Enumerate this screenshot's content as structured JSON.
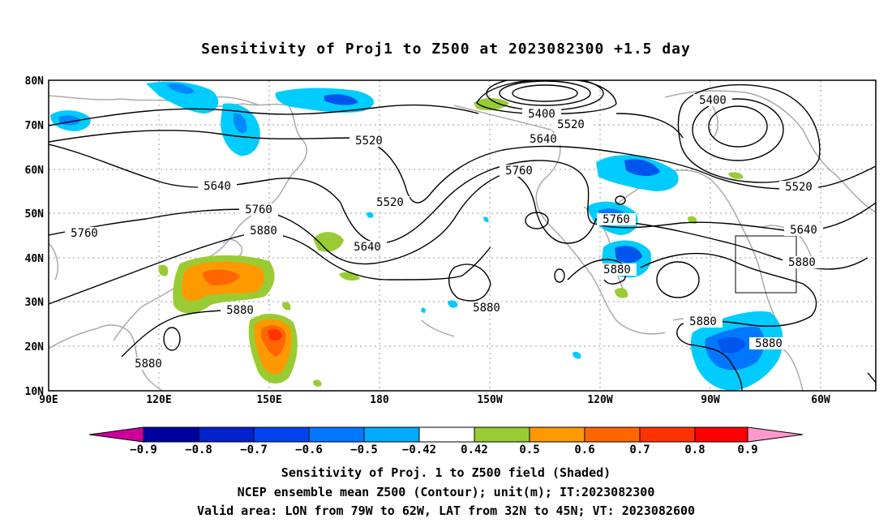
{
  "title": "Sensitivity of Proj1 to Z500 at 2023082300 +1.5 day",
  "lat_labels": [
    "80N",
    "70N",
    "60N",
    "50N",
    "40N",
    "30N",
    "20N",
    "10N"
  ],
  "lon_labels": [
    "90E",
    "120E",
    "150E",
    "180",
    "150W",
    "120W",
    "90W",
    "60W"
  ],
  "contour_labels": [
    "5400",
    "5400",
    "5520",
    "5520",
    "5520",
    "5520",
    "5640",
    "5640",
    "5640",
    "5640",
    "5760",
    "5760",
    "5760",
    "5760",
    "5880",
    "5880",
    "5880",
    "5880",
    "5880",
    "5880",
    "5880"
  ],
  "colorbar": {
    "ticks": [
      "−0.9",
      "−0.8",
      "−0.7",
      "−0.6",
      "−0.5",
      "−0.42",
      "0.42",
      "0.5",
      "0.6",
      "0.7",
      "0.8",
      "0.9"
    ],
    "colors": [
      "#0000a0",
      "#0022cc",
      "#0044ee",
      "#0077ff",
      "#00aaff",
      "#00ccff",
      "#ffffff",
      "#99cc33",
      "#ff9900",
      "#ff6600",
      "#ff3300",
      "#ff0000"
    ],
    "low_end_color": "#cc0099",
    "high_end_color": "#ff99cc"
  },
  "captions": [
    "Sensitivity of Proj. 1 to Z500 field (Shaded)",
    "NCEP ensemble mean Z500 (Contour); unit(m); IT:2023082300",
    "Valid area: LON from 79W to 62W, LAT from 32N to 45N; VT: 2023082600"
  ]
}
